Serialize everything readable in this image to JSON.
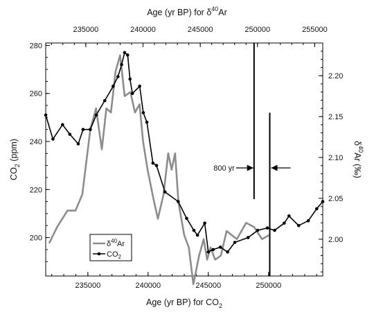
{
  "chart_data": {
    "type": "line",
    "xlabel_bottom": "Age (yr BP) for CO",
    "xlabel_bottom_sub": "2",
    "xlabel_top": "Age (yr BP) for δ",
    "xlabel_top_sup": "40",
    "xlabel_top_tail": "Ar",
    "ylabel_left": "CO",
    "ylabel_left_sub": "2",
    "ylabel_left_tail": " (ppm)",
    "ylabel_right_pre": "δ",
    "ylabel_right_sup": "40",
    "ylabel_right_tail": "Ar (‰)",
    "bottom_axis": {
      "range": [
        231500,
        254500
      ],
      "ticks": [
        "235000",
        "240000",
        "245000",
        "250000"
      ],
      "tick_values": [
        235000,
        240000,
        245000,
        250000
      ]
    },
    "top_axis": {
      "range": [
        231500,
        255700
      ],
      "ticks": [
        "235000",
        "240000",
        "245000",
        "250000",
        "255000"
      ],
      "tick_values": [
        235000,
        240000,
        245000,
        250000,
        255000
      ]
    },
    "left_axis": {
      "range": [
        184,
        281
      ],
      "ticks": [
        "200",
        "220",
        "240",
        "260",
        "280"
      ],
      "tick_values": [
        200,
        220,
        240,
        260,
        280
      ]
    },
    "right_axis": {
      "range": [
        1.955,
        2.24
      ],
      "ticks": [
        "2.00",
        "2.05",
        "2.10",
        "2.15",
        "2.20"
      ],
      "tick_values": [
        2.0,
        2.05,
        2.1,
        2.15,
        2.2
      ]
    },
    "legend_position": "bottom-left",
    "series": [
      {
        "name": "CO",
        "name_sub": "2",
        "color": "#000000",
        "axes": "bottom-left",
        "markers": true,
        "x": [
          231500,
          232100,
          232900,
          233500,
          234200,
          234600,
          235200,
          235700,
          236400,
          237100,
          237500,
          237800,
          238050,
          238300,
          238500,
          238700,
          239300,
          239600,
          239900,
          240400,
          240700,
          241400,
          242500,
          243200,
          243800,
          244100,
          244700,
          245000,
          245400,
          246000,
          246600,
          247200,
          248300,
          249100,
          249900,
          250500,
          251300,
          251700,
          252500,
          253300,
          254000,
          254500
        ],
        "y": [
          251,
          241,
          247,
          243,
          239,
          245,
          245,
          251,
          257,
          263,
          267,
          272,
          277,
          276,
          266,
          260,
          263,
          252,
          248,
          231,
          230,
          219,
          215,
          208,
          203,
          201,
          206,
          194,
          195,
          196,
          194,
          198,
          200,
          203,
          204,
          203,
          206,
          209,
          205,
          207,
          212,
          215
        ]
      },
      {
        "name": "δ",
        "name_sup": "40",
        "name_tail": "Ar",
        "color": "#8c8c8c",
        "axes": "top-right",
        "markers": false,
        "x": [
          231800,
          232500,
          233400,
          234100,
          234700,
          235400,
          235900,
          236400,
          236800,
          237200,
          237600,
          238000,
          238400,
          238900,
          239300,
          239700,
          240000,
          240400,
          240900,
          241300,
          241800,
          242200,
          242500,
          242800,
          243100,
          243600,
          244000,
          244400,
          244900,
          245300,
          245600,
          245900,
          246300,
          246800,
          247300,
          248200,
          249000,
          249700,
          250400,
          251000
        ],
        "y": [
          1.995,
          2.015,
          2.035,
          2.035,
          2.055,
          2.135,
          2.16,
          2.11,
          2.16,
          2.155,
          2.205,
          2.225,
          2.175,
          2.18,
          2.155,
          2.165,
          2.12,
          2.085,
          2.05,
          2.025,
          2.055,
          2.105,
          2.085,
          2.105,
          2.045,
          2.005,
          1.99,
          1.945,
          1.98,
          2.0,
          1.975,
          1.99,
          1.975,
          1.98,
          2.01,
          2.0,
          2.02,
          2.015,
          2.0,
          2.005
        ]
      }
    ],
    "annotation": {
      "text": "800 yr",
      "arrow_left_x": 249600,
      "arrow_right_x": 250100,
      "arrow_y": 229,
      "marker_line_top_x": 249700,
      "marker_line_bottom_x": 250100
    }
  }
}
